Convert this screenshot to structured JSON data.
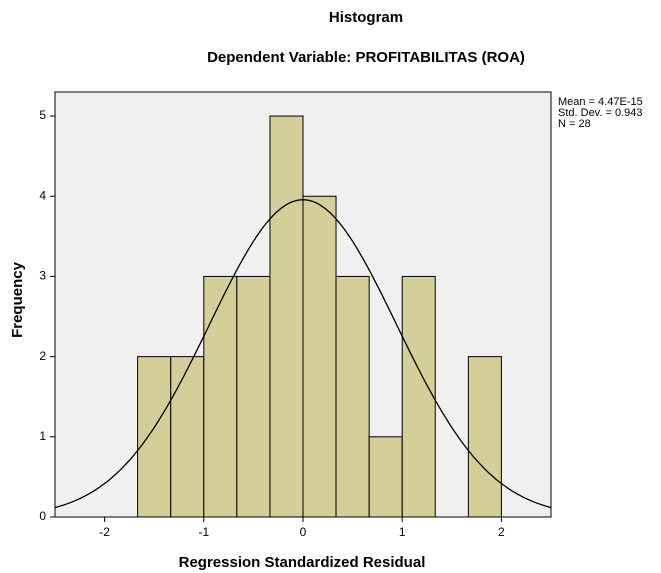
{
  "chart_data": {
    "type": "histogram",
    "title": "Histogram",
    "subtitle": "Dependent Variable: PROFITABILITAS (ROA)",
    "x_label": "Regression Standardized Residual",
    "y_label": "Frequency",
    "bins": [
      -1.667,
      -1.333,
      -1,
      -0.667,
      -0.333,
      0,
      0.333,
      0.667,
      1,
      1.333,
      1.667,
      2
    ],
    "values": [
      2,
      2,
      3,
      3,
      5,
      4,
      3,
      1,
      3,
      0,
      2
    ],
    "color": "#d4cf98",
    "background": "#f0f0f0",
    "xlim": [
      -2.5,
      2.5
    ],
    "xticks": [
      -2,
      -1,
      0,
      1,
      2
    ],
    "ylim": [
      0,
      5.3
    ],
    "yticks": [
      0,
      1,
      2,
      3,
      4,
      5
    ],
    "stats": [
      {
        "value": 4.47e-15,
        "label": "Mean = 4.47E-15"
      },
      {
        "value": 0.943,
        "label": "Std. Dev. = 0.943"
      },
      {
        "value": 28,
        "label": "N = 28"
      }
    ],
    "normal_curve": true
  }
}
